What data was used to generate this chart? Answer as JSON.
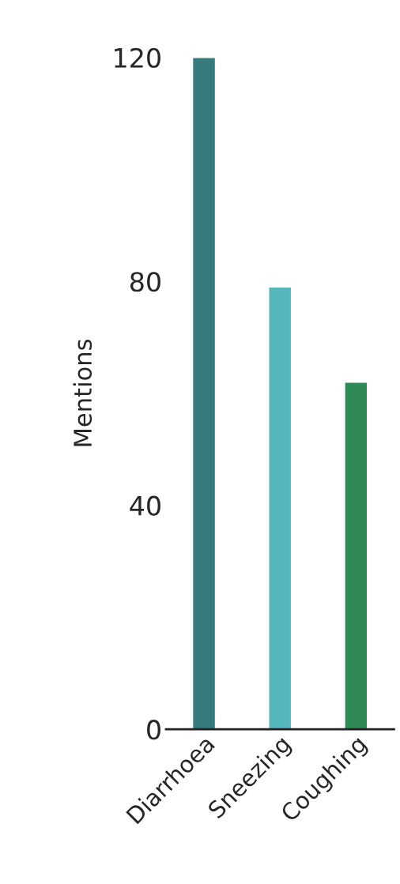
{
  "chart_data": {
    "type": "bar",
    "ylabel": "Mentions",
    "categories": [
      "Diarrhoea",
      "Sneezing",
      "Coughing"
    ],
    "values": [
      120,
      79,
      62
    ],
    "colors": [
      "#357a7c",
      "#55b6bb",
      "#2e8b57"
    ],
    "ylim": [
      0,
      120
    ],
    "yticks": [
      0,
      40,
      80,
      120
    ],
    "grid": false,
    "legend": false
  }
}
